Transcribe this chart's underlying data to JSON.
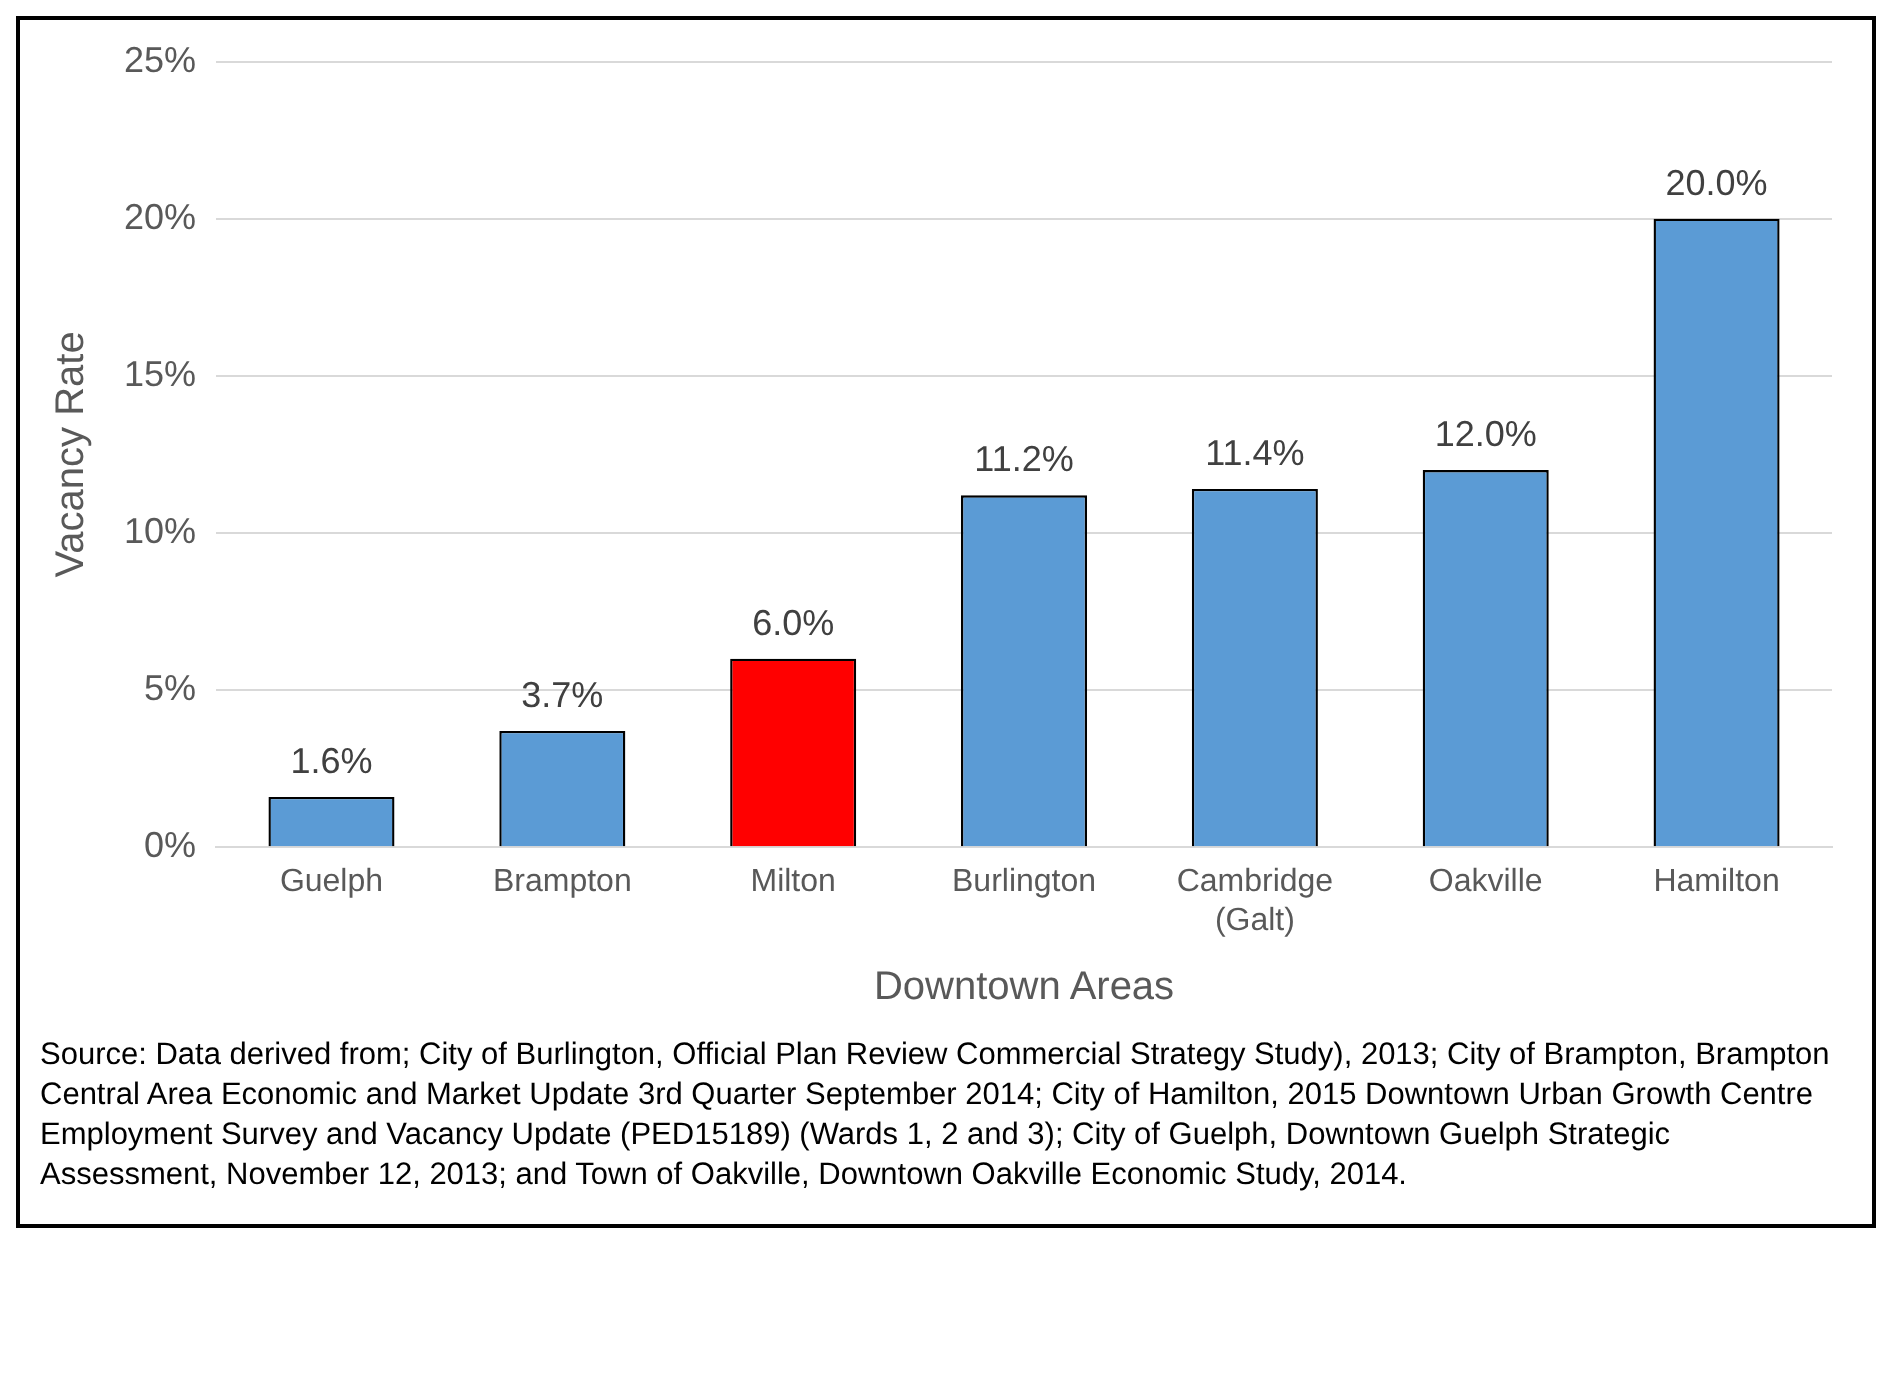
{
  "chart_data": {
    "type": "bar",
    "xlabel": "Downtown Areas",
    "ylabel": "Vacancy Rate",
    "categories": [
      "Guelph",
      "Brampton",
      "Milton",
      "Burlington",
      "Cambridge (Galt)",
      "Oakville",
      "Hamilton"
    ],
    "values": [
      1.6,
      3.7,
      6.0,
      11.2,
      11.4,
      12.0,
      20.0
    ],
    "value_labels": [
      "1.6%",
      "3.7%",
      "6.0%",
      "11.2%",
      "11.4%",
      "12.0%",
      "20.0%"
    ],
    "colors": [
      "#5b9bd5",
      "#5b9bd5",
      "#ff0000",
      "#5b9bd5",
      "#5b9bd5",
      "#5b9bd5",
      "#5b9bd5"
    ],
    "ylim": [
      0,
      25
    ],
    "yticks": [
      {
        "value": 0,
        "label": "0%"
      },
      {
        "value": 5,
        "label": "5%"
      },
      {
        "value": 10,
        "label": "10%"
      },
      {
        "value": 15,
        "label": "15%"
      },
      {
        "value": 20,
        "label": "20%"
      },
      {
        "value": 25,
        "label": "25%"
      }
    ],
    "grid": "y",
    "legend": false,
    "annotations": [
      "Source: Data derived from; City of Burlington, Official Plan Review Commercial Strategy Study), 2013; City of Brampton, Brampton Central Area Economic and Market Update 3rd Quarter September 2014; City of Hamilton, 2015 Downtown Urban Growth Centre Employment Survey and Vacancy Update (PED15189) (Wards 1,  2 and 3); City of Guelph, Downtown Guelph Strategic Assessment, November 12, 2013; and Town of Oakville, Downtown Oakville Economic Study, 2014."
    ]
  }
}
